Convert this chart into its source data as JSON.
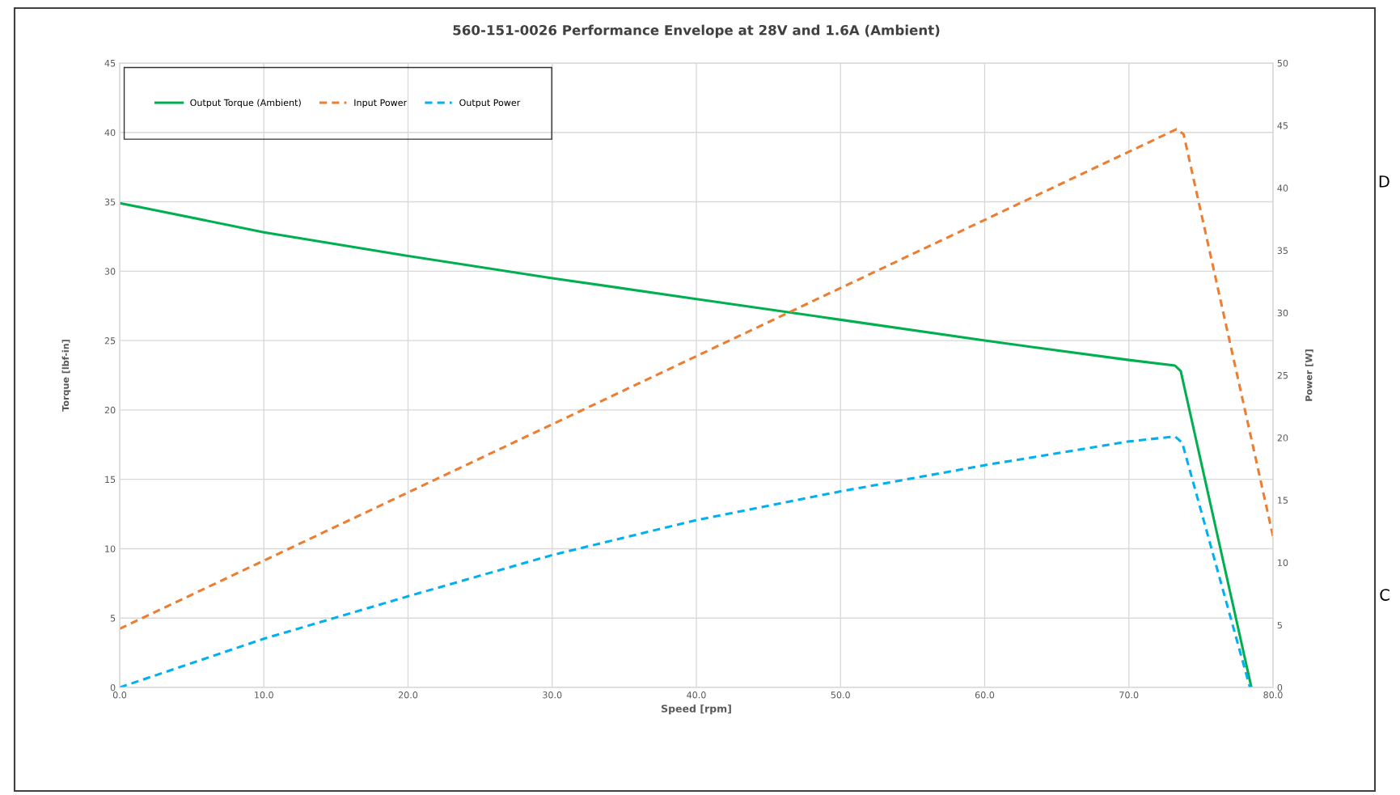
{
  "chart_data": {
    "type": "line",
    "title": "560-151-0026 Performance Envelope at 28V and 1.6A (Ambient)",
    "xlabel": "Speed [rpm]",
    "ylabel": "Torque [lbf-in]",
    "y2label": "Power [W]",
    "xlim": [
      0,
      80
    ],
    "xticks": [
      {
        "value": 0,
        "label": "0.0"
      },
      {
        "value": 10,
        "label": "10.0"
      },
      {
        "value": 20,
        "label": "20.0"
      },
      {
        "value": 30,
        "label": "30.0"
      },
      {
        "value": 40,
        "label": "40.0"
      },
      {
        "value": 50,
        "label": "50.0"
      },
      {
        "value": 60,
        "label": "60.0"
      },
      {
        "value": 70,
        "label": "70.0"
      },
      {
        "value": 80,
        "label": "80.0"
      }
    ],
    "ylim": [
      0,
      45
    ],
    "yticks": [
      0,
      5,
      10,
      15,
      20,
      25,
      30,
      35,
      40,
      45
    ],
    "y2lim": [
      0,
      50
    ],
    "y2ticks": [
      0,
      5,
      10,
      15,
      20,
      25,
      30,
      35,
      40,
      45,
      50
    ],
    "grid": true,
    "legend": "top left",
    "marker": "none",
    "series": [
      {
        "name": "Output Torque (Ambient)",
        "color": "#00b050",
        "line_style": "solid",
        "x": [
          0,
          2,
          10,
          20,
          30,
          40,
          50,
          60,
          70,
          73.2,
          73.6,
          78.5
        ],
        "values": [
          34.9,
          34.5,
          32.8,
          31.1,
          29.5,
          28.0,
          26.5,
          25.0,
          23.6,
          23.2,
          22.8,
          0
        ]
      },
      {
        "name": "Input Power",
        "color": "#ed7d31",
        "line_style": "dashed",
        "axis": "y2",
        "x": [
          0,
          73.3,
          73.8,
          80
        ],
        "values": [
          4.7,
          44.7,
          44.3,
          12.1
        ]
      },
      {
        "name": "Output Power",
        "color": "#00b0f0",
        "line_style": "dashed",
        "axis": "y2",
        "x": [
          0,
          10,
          20,
          30,
          40,
          50,
          60,
          70,
          73.2,
          73.7,
          78.4
        ],
        "values": [
          0,
          3.9,
          7.3,
          10.6,
          13.4,
          15.7,
          17.8,
          19.7,
          20.1,
          19.6,
          0
        ]
      }
    ],
    "annotations": [
      "D",
      "C"
    ]
  }
}
